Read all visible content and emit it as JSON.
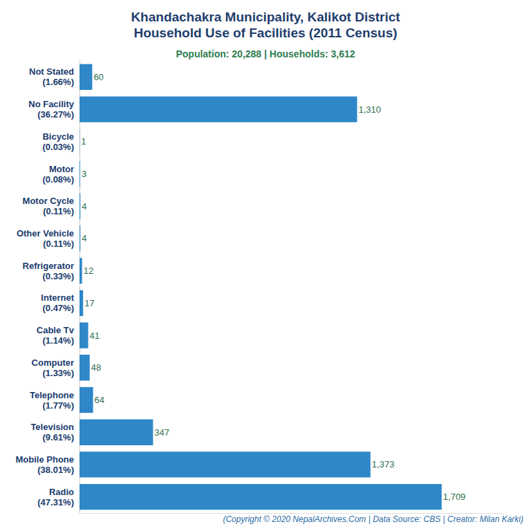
{
  "chart_data": {
    "type": "bar",
    "title": "Khandachakra Municipality, Kalikot District\nHousehold Use of Facilities (2011 Census)",
    "subtitle": "Population: 20,288 | Households: 3,612",
    "caption": "(Copyright © 2020 NepalArchives.Com | Data Source: CBS | Creator: Milan Karki)",
    "orientation": "horizontal",
    "categories": [
      "Not Stated\n(1.66%)",
      "No Facility\n(36.27%)",
      "Bicycle\n(0.03%)",
      "Motor\n(0.08%)",
      "Motor Cycle\n(0.11%)",
      "Other Vehicle\n(0.11%)",
      "Refrigerator\n(0.33%)",
      "Internet\n(0.47%)",
      "Cable Tv\n(1.14%)",
      "Computer\n(1.33%)",
      "Telephone\n(1.77%)",
      "Television\n(9.61%)",
      "Mobile Phone\n(38.01%)",
      "Radio\n(47.31%)"
    ],
    "values": [
      60,
      1310,
      1,
      3,
      4,
      4,
      12,
      17,
      41,
      48,
      64,
      347,
      1373,
      1709
    ],
    "value_labels": [
      "60",
      "1,310",
      "1",
      "3",
      "4",
      "4",
      "12",
      "17",
      "41",
      "48",
      "64",
      "347",
      "1,373",
      "1,709"
    ],
    "data_labels": true,
    "color": "#2f87c8",
    "xlim": [
      0,
      2000
    ],
    "xticks": [],
    "grid": false,
    "tick_labels": "y"
  }
}
